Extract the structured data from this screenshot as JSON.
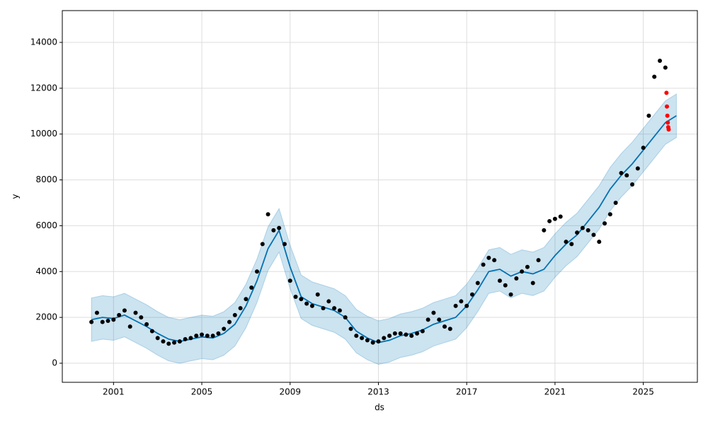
{
  "chart_data": {
    "type": "line",
    "x_label": "ds",
    "y_label": "y",
    "xlim": [
      1998.68,
      2027.45
    ],
    "xticks": [
      2001,
      2005,
      2009,
      2013,
      2017,
      2021,
      2025
    ],
    "ylim": [
      -833,
      15388
    ],
    "yticks": [
      0,
      2000,
      4000,
      6000,
      8000,
      10000,
      12000,
      14000
    ],
    "grid": true,
    "series": [
      {
        "type": "band",
        "color": "#0072B2",
        "x": [
          2000,
          2000.5,
          2001,
          2001.5,
          2002,
          2002.5,
          2003,
          2003.5,
          2004,
          2004.5,
          2005,
          2005.5,
          2006,
          2006.5,
          2007,
          2007.5,
          2008,
          2008.5,
          2009,
          2009.5,
          2010,
          2010.5,
          2011,
          2011.5,
          2012,
          2012.5,
          2013,
          2013.5,
          2014,
          2014.5,
          2015,
          2015.5,
          2016,
          2016.5,
          2017,
          2017.5,
          2018,
          2018.5,
          2019,
          2019.5,
          2020,
          2020.5,
          2021,
          2021.5,
          2022,
          2022.5,
          2023,
          2023.5,
          2024,
          2024.5,
          2025,
          2025.5,
          2026,
          2026.5
        ],
        "lower": [
          950,
          1050,
          1000,
          1150,
          900,
          650,
          350,
          100,
          0,
          100,
          200,
          150,
          350,
          750,
          1550,
          2650,
          4050,
          4850,
          3250,
          1950,
          1650,
          1500,
          1350,
          1050,
          450,
          150,
          -50,
          50,
          250,
          350,
          500,
          750,
          900,
          1050,
          1550,
          2250,
          3050,
          3150,
          2850,
          3050,
          2950,
          3150,
          3750,
          4250,
          4650,
          5250,
          5850,
          6650,
          7250,
          7750,
          8350,
          8950,
          9550,
          9850
        ],
        "upper": [
          2850,
          2950,
          2900,
          3050,
          2800,
          2550,
          2250,
          2000,
          1900,
          2000,
          2100,
          2050,
          2250,
          2650,
          3450,
          4550,
          5950,
          6750,
          5150,
          3850,
          3550,
          3400,
          3250,
          2950,
          2350,
          2050,
          1850,
          1950,
          2150,
          2250,
          2400,
          2650,
          2800,
          2950,
          3450,
          4150,
          4950,
          5050,
          4750,
          4950,
          4850,
          5050,
          5650,
          6150,
          6550,
          7150,
          7750,
          8550,
          9150,
          9650,
          10250,
          10850,
          11450,
          11750
        ]
      },
      {
        "type": "line",
        "color": "#0072B2",
        "x": [
          2000,
          2000.5,
          2001,
          2001.5,
          2002,
          2002.5,
          2003,
          2003.5,
          2004,
          2004.5,
          2005,
          2005.5,
          2006,
          2006.5,
          2007,
          2007.5,
          2008,
          2008.5,
          2009,
          2009.5,
          2010,
          2010.5,
          2011,
          2011.5,
          2012,
          2012.5,
          2013,
          2013.5,
          2014,
          2014.5,
          2015,
          2015.5,
          2016,
          2016.5,
          2017,
          2017.5,
          2018,
          2018.5,
          2019,
          2019.5,
          2020,
          2020.5,
          2021,
          2021.5,
          2022,
          2022.5,
          2023,
          2023.5,
          2024,
          2024.5,
          2025,
          2025.5,
          2026,
          2026.5
        ],
        "values": [
          1900,
          2000,
          1950,
          2100,
          1850,
          1600,
          1300,
          1050,
          950,
          1050,
          1150,
          1100,
          1300,
          1700,
          2500,
          3600,
          5000,
          5800,
          4200,
          2900,
          2600,
          2450,
          2300,
          2000,
          1400,
          1100,
          900,
          1000,
          1200,
          1300,
          1450,
          1700,
          1850,
          2000,
          2500,
          3200,
          4000,
          4100,
          3800,
          4000,
          3900,
          4100,
          4700,
          5200,
          5600,
          6200,
          6800,
          7600,
          8200,
          8700,
          9300,
          9900,
          10500,
          10800
        ]
      },
      {
        "type": "scatter",
        "color": "#000000",
        "x": [
          2000,
          2000.25,
          2000.5,
          2000.75,
          2001,
          2001.25,
          2001.5,
          2001.75,
          2002,
          2002.25,
          2002.5,
          2002.75,
          2003,
          2003.25,
          2003.5,
          2003.75,
          2004,
          2004.25,
          2004.5,
          2004.75,
          2005,
          2005.25,
          2005.5,
          2005.75,
          2006,
          2006.25,
          2006.5,
          2006.75,
          2007,
          2007.25,
          2007.5,
          2007.75,
          2008,
          2008.25,
          2008.5,
          2008.75,
          2009,
          2009.25,
          2009.5,
          2009.75,
          2010,
          2010.25,
          2010.5,
          2010.75,
          2011,
          2011.25,
          2011.5,
          2011.75,
          2012,
          2012.25,
          2012.5,
          2012.75,
          2013,
          2013.25,
          2013.5,
          2013.75,
          2014,
          2014.25,
          2014.5,
          2014.75,
          2015,
          2015.25,
          2015.5,
          2015.75,
          2016,
          2016.25,
          2016.5,
          2016.75,
          2017,
          2017.25,
          2017.5,
          2017.75,
          2018,
          2018.25,
          2018.5,
          2018.75,
          2019,
          2019.25,
          2019.5,
          2019.75,
          2020,
          2020.25,
          2020.5,
          2020.75,
          2021,
          2021.25,
          2021.5,
          2021.75,
          2022,
          2022.25,
          2022.5,
          2022.75,
          2023,
          2023.25,
          2023.5,
          2023.75,
          2024,
          2024.25,
          2024.5,
          2024.75,
          2025,
          2025.25,
          2025.5,
          2025.75,
          2026
        ],
        "values": [
          1800,
          2200,
          1800,
          1850,
          1900,
          2100,
          2300,
          1600,
          2200,
          2000,
          1700,
          1400,
          1100,
          950,
          850,
          900,
          950,
          1050,
          1100,
          1200,
          1250,
          1200,
          1200,
          1300,
          1500,
          1800,
          2100,
          2400,
          2800,
          3300,
          4000,
          5200,
          6500,
          5800,
          5900,
          5200,
          3600,
          2900,
          2800,
          2600,
          2500,
          3000,
          2400,
          2700,
          2400,
          2300,
          2000,
          1500,
          1200,
          1100,
          1000,
          900,
          950,
          1100,
          1200,
          1300,
          1300,
          1250,
          1200,
          1300,
          1400,
          1900,
          2200,
          1900,
          1600,
          1500,
          2500,
          2700,
          2500,
          3000,
          3500,
          4300,
          4600,
          4500,
          3600,
          3400,
          3000,
          3700,
          4000,
          4200,
          3500,
          4500,
          5800,
          6200,
          6300,
          6400,
          5300,
          5200,
          5700,
          5900,
          5800,
          5600,
          5300,
          6100,
          6500,
          7000,
          8300,
          8200,
          7800,
          8500,
          9400,
          10800,
          12500,
          13200,
          12900
        ]
      },
      {
        "type": "scatter",
        "color": "#ff0000",
        "x": [
          2026.05,
          2026.07,
          2026.09,
          2026.11,
          2026.13,
          2026.15
        ],
        "values": [
          11800,
          11200,
          10800,
          10500,
          10300,
          10200
        ]
      }
    ]
  }
}
